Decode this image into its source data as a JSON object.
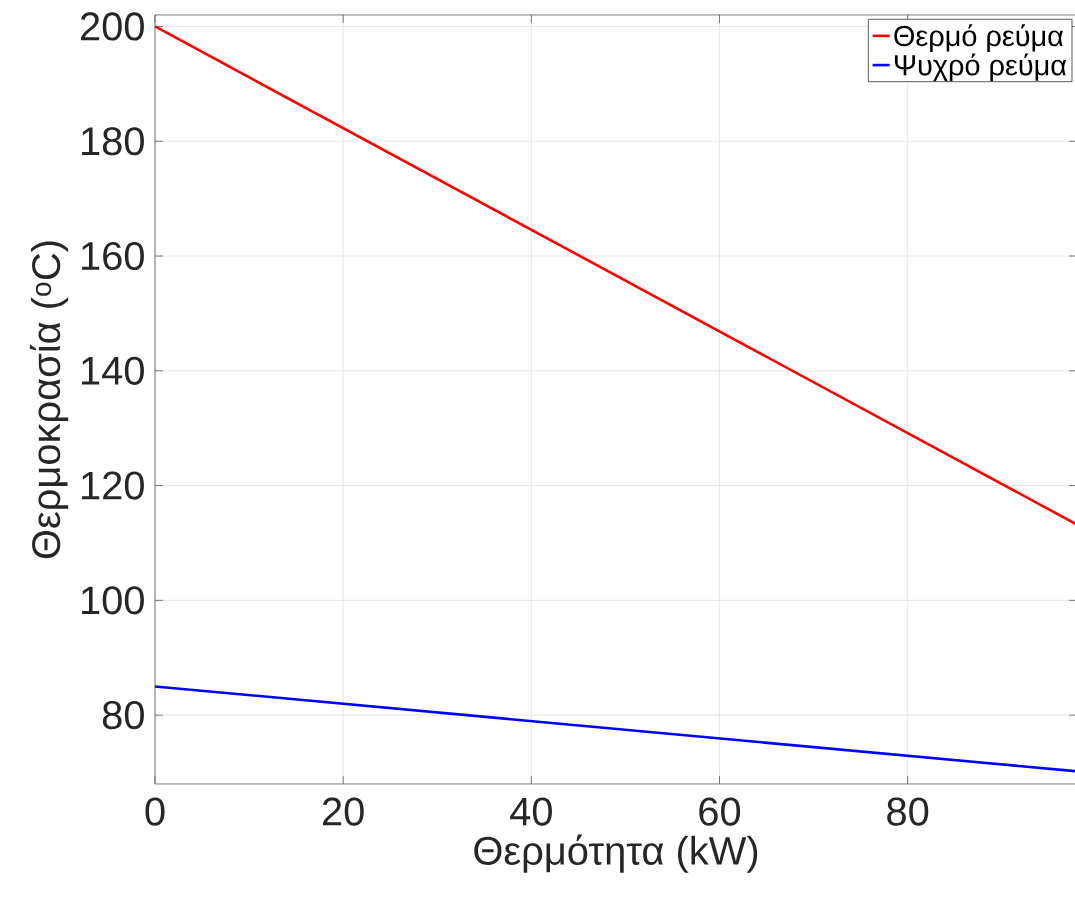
{
  "chart_data": {
    "type": "line",
    "xlabel": "Θερμότητα (kW)",
    "ylabel": "Θερμοκρασία ($^{o}$C)",
    "xlim": [
      0,
      98
    ],
    "ylim": [
      68,
      202
    ],
    "xticks": [
      0,
      20,
      40,
      60,
      80
    ],
    "yticks": [
      80,
      100,
      120,
      140,
      160,
      180,
      200
    ],
    "x": [
      0,
      98
    ],
    "grid": true,
    "legend": "top right",
    "marker": "none",
    "line_style": "solid",
    "series": [
      {
        "name": "Θερμό ρεύμα",
        "color": "#ff0000",
        "values": [
          200,
          113.2
        ]
      },
      {
        "name": "Ψυχρό ρεύμα",
        "color": "#0000ff",
        "values": [
          85,
          70.2
        ]
      }
    ]
  }
}
